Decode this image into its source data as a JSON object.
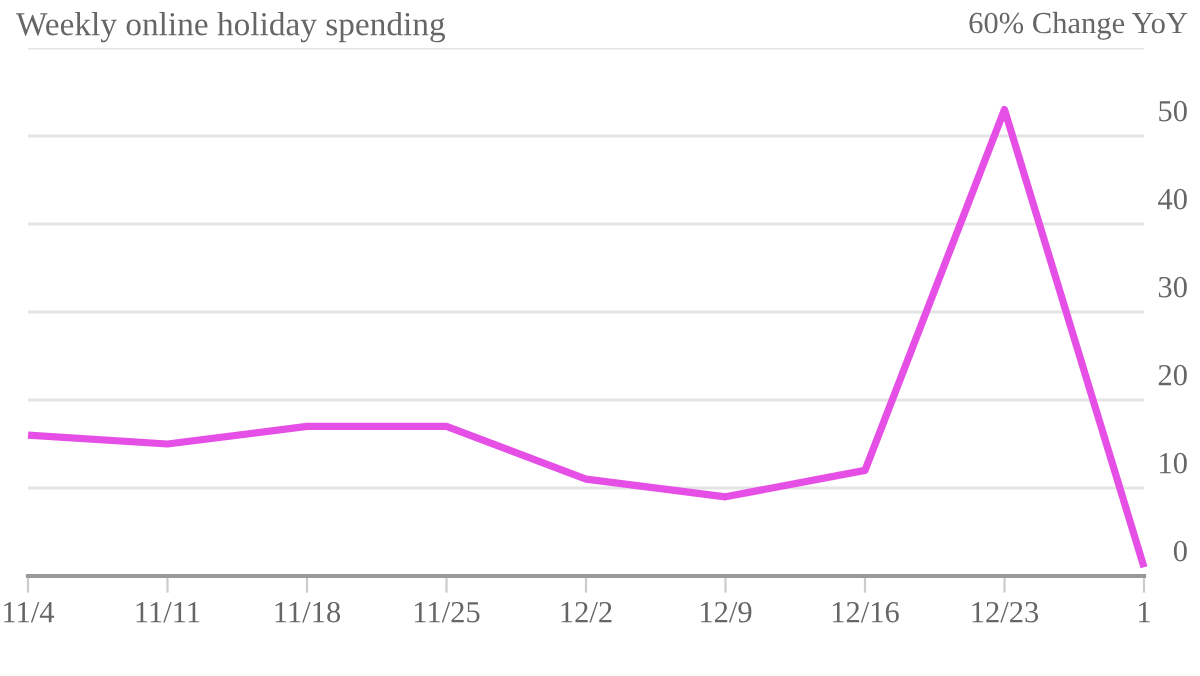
{
  "chart_data": {
    "type": "line",
    "title": "Weekly online holiday spending",
    "categories": [
      "11/4",
      "11/11",
      "11/18",
      "11/25",
      "12/2",
      "12/9",
      "12/16",
      "12/23",
      "1"
    ],
    "series": [
      {
        "color": "#e64fe6",
        "values": [
          16,
          15,
          17,
          17,
          11,
          9,
          12,
          53,
          1
        ]
      }
    ],
    "ylim": [
      0,
      60
    ],
    "yticks": [
      0,
      10,
      20,
      30,
      40,
      50,
      {
        "value": 60,
        "label": "60% Change YoY"
      }
    ],
    "grid": "y",
    "legend": false,
    "marker": "none",
    "line_style": "solid"
  }
}
